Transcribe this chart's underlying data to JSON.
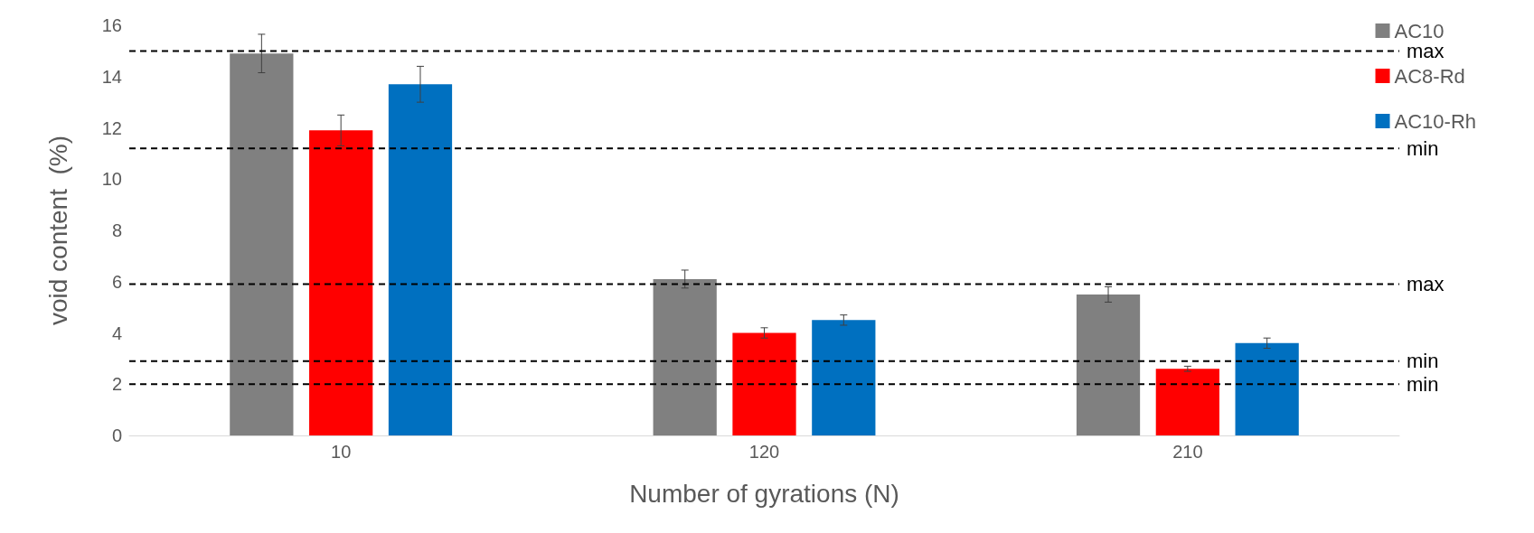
{
  "chart_data": {
    "type": "bar",
    "xlabel": "Number of gyrations (N)",
    "ylabel": "void content  (%)",
    "categories": [
      "10",
      "120",
      "210"
    ],
    "series": [
      {
        "name": "AC10",
        "color": "#808080",
        "values": [
          14.9,
          6.1,
          5.5
        ],
        "errors": [
          0.75,
          0.35,
          0.3
        ]
      },
      {
        "name": "AC8-Rd",
        "color": "#ff0000",
        "values": [
          11.9,
          4.0,
          2.6
        ],
        "errors": [
          0.6,
          0.2,
          0.1
        ]
      },
      {
        "name": "AC10-Rh",
        "color": "#0070c0",
        "values": [
          13.7,
          4.5,
          3.6
        ],
        "errors": [
          0.7,
          0.2,
          0.2
        ]
      }
    ],
    "ref_lines": [
      {
        "axis": "y",
        "value": 15,
        "label": "max",
        "color": "#000000",
        "line_style": "dashed"
      },
      {
        "axis": "y",
        "value": 11.2,
        "label": "min",
        "color": "#000000",
        "line_style": "dashed"
      },
      {
        "axis": "y",
        "value": 5.9,
        "label": "max",
        "color": "#000000",
        "line_style": "dashed"
      },
      {
        "axis": "y",
        "value": 2.9,
        "label": "min",
        "color": "#000000",
        "line_style": "dashed"
      },
      {
        "axis": "y",
        "value": 2.0,
        "label": "min",
        "color": "#000000",
        "line_style": "dashed"
      }
    ],
    "ylim": [
      0,
      16
    ],
    "yticks": [
      0,
      2,
      4,
      6,
      8,
      10,
      12,
      14,
      16
    ],
    "grid": false,
    "legend": "top right"
  }
}
